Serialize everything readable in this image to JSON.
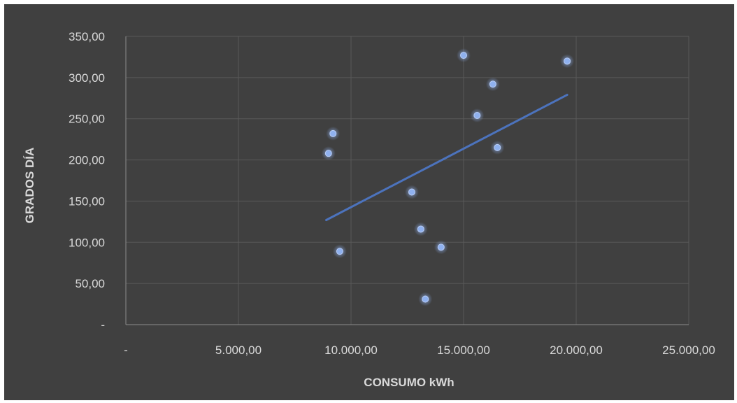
{
  "chart_data": {
    "type": "scatter",
    "title": "",
    "xlabel": "CONSUMO kWh",
    "ylabel": "GRADOS DÍA",
    "xlim": [
      0,
      25000
    ],
    "ylim": [
      0,
      350
    ],
    "x_ticks": [
      0,
      5000,
      10000,
      15000,
      20000,
      25000
    ],
    "x_tick_labels": [
      "-",
      "5.000,00",
      "10.000,00",
      "15.000,00",
      "20.000,00",
      "25.000,00"
    ],
    "y_ticks": [
      0,
      50,
      100,
      150,
      200,
      250,
      300,
      350
    ],
    "y_tick_labels": [
      "-",
      "50,00",
      "100,00",
      "150,00",
      "200,00",
      "250,00",
      "300,00",
      "350,00"
    ],
    "grid": true,
    "legend": "none",
    "series": [
      {
        "points": [
          {
            "x": 9000,
            "y": 208
          },
          {
            "x": 9200,
            "y": 232
          },
          {
            "x": 9500,
            "y": 89
          },
          {
            "x": 12700,
            "y": 161
          },
          {
            "x": 13100,
            "y": 116
          },
          {
            "x": 13300,
            "y": 31
          },
          {
            "x": 14000,
            "y": 94
          },
          {
            "x": 15000,
            "y": 327
          },
          {
            "x": 15600,
            "y": 254
          },
          {
            "x": 16300,
            "y": 292
          },
          {
            "x": 16500,
            "y": 215
          },
          {
            "x": 19600,
            "y": 320
          }
        ]
      }
    ],
    "trendline": {
      "type": "linear",
      "x_start": 8900,
      "y_start": 127,
      "x_end": 19600,
      "y_end": 279
    },
    "colors": {
      "background": "#404040",
      "grid": "#595959",
      "marker": "#8fb1ef",
      "marker_glow": "#6f93d9",
      "trendline": "#4c73bd",
      "text": "#d9d9d9"
    }
  }
}
